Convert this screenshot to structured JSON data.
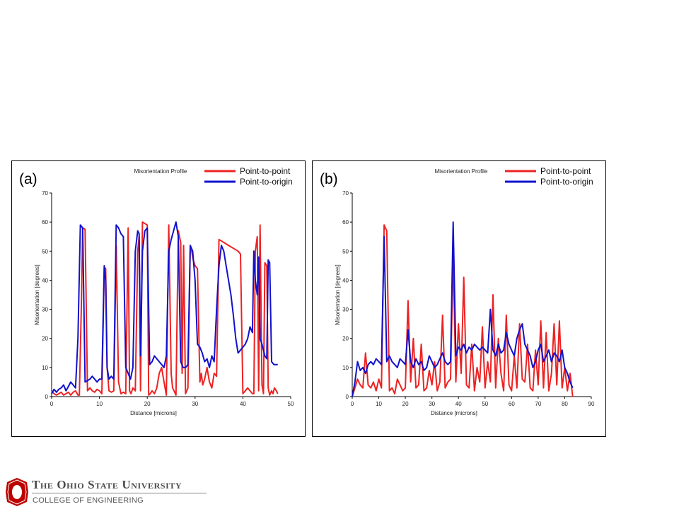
{
  "colors": {
    "point_to_point": "#ee2222",
    "point_to_origin": "#1111cc",
    "osu_scarlet": "#bb0000"
  },
  "footer": {
    "university": "The Ohio State University",
    "college": "COLLEGE OF ENGINEERING"
  },
  "chart_data": [
    {
      "id": "a",
      "panel_label": "(a)",
      "type": "line",
      "title": "Misorientation Profile",
      "xlabel": "Distance [microns]",
      "ylabel": "Misorientation [degrees]",
      "xlim": [
        0,
        50
      ],
      "ylim": [
        0,
        70
      ],
      "xticks": [
        0,
        10,
        20,
        30,
        40,
        50
      ],
      "yticks": [
        0,
        10,
        20,
        30,
        40,
        50,
        60,
        70
      ],
      "legend": [
        "Point-to-point",
        "Point-to-origin"
      ],
      "series": [
        {
          "name": "Point-to-point",
          "color": "#ee2222",
          "x": [
            0,
            0.5,
            1,
            1.5,
            2,
            2.5,
            3,
            3.5,
            4,
            4.5,
            5,
            5.5,
            5.8,
            6.2,
            6.5,
            7,
            7.5,
            8,
            8.5,
            9,
            9.5,
            10,
            10.5,
            11,
            11.3,
            11.6,
            12,
            12.5,
            13,
            13.5,
            14,
            14.5,
            15,
            15.5,
            16,
            16.3,
            16.6,
            17,
            17.5,
            18,
            18.3,
            18.6,
            19,
            19.5,
            20,
            20.3,
            20.6,
            21,
            21.5,
            22,
            22.5,
            23,
            23.5,
            24,
            24.5,
            25,
            25.3,
            25.6,
            26,
            26.5,
            27,
            27.3,
            27.6,
            28,
            28.5,
            29,
            29.3,
            29.6,
            30,
            30.5,
            31,
            31.3,
            31.6,
            32,
            32.5,
            33,
            33.5,
            34,
            34.5,
            35,
            36,
            37,
            38,
            39,
            39.5,
            40,
            40.5,
            41,
            41.5,
            42,
            42.3,
            42.6,
            43,
            43.3,
            43.6,
            44,
            44.3,
            44.6,
            45,
            45.3,
            45.6,
            46,
            46.3,
            46.6,
            47,
            47.3
          ],
          "values": [
            2,
            1,
            0.5,
            1,
            1.5,
            0.5,
            1,
            1.5,
            0.5,
            1.5,
            2,
            0.5,
            0.5,
            30,
            58,
            57.5,
            2,
            3,
            2,
            1.5,
            2.5,
            2,
            1,
            44.5,
            44,
            10,
            2,
            1.5,
            2,
            52,
            5,
            1,
            1.5,
            1,
            58,
            2,
            1,
            3,
            2,
            50,
            55,
            2,
            60,
            59.5,
            59,
            0.5,
            1,
            2,
            1,
            3,
            8,
            10,
            5,
            0.5,
            59,
            8,
            3,
            2,
            0.5,
            57,
            53,
            8,
            52,
            1,
            3,
            52,
            50,
            47,
            45,
            44,
            5,
            8,
            4,
            6,
            10,
            5,
            3,
            8,
            7,
            54,
            53,
            52,
            51,
            50,
            49,
            1,
            2,
            3,
            2,
            1,
            1,
            50,
            55,
            2,
            59,
            4,
            1,
            46,
            45,
            3,
            0.5,
            2,
            1,
            3,
            2,
            1
          ]
        },
        {
          "name": "Point-to-origin",
          "color": "#1111cc",
          "x": [
            0,
            0.5,
            1,
            1.5,
            2,
            2.5,
            3,
            3.5,
            4,
            4.5,
            5,
            5.5,
            6,
            6.5,
            7,
            7.5,
            8,
            8.5,
            9,
            9.5,
            10,
            10.5,
            11,
            11.3,
            11.6,
            12,
            12.5,
            13,
            13.5,
            14,
            14.5,
            15,
            15.5,
            16,
            16.5,
            17,
            17.5,
            18,
            18.3,
            18.6,
            19,
            19.5,
            20,
            20.5,
            21,
            21.5,
            22,
            22.5,
            23,
            23.5,
            24,
            24.5,
            25,
            25.5,
            26,
            26.5,
            27,
            27.5,
            28,
            28.5,
            29,
            29.5,
            30,
            30.5,
            31,
            31.5,
            32,
            32.5,
            33,
            33.5,
            34,
            34.5,
            35,
            35.5,
            36,
            36.5,
            37,
            37.5,
            38,
            38.5,
            39,
            39.5,
            40,
            40.5,
            41,
            41.5,
            42,
            42.3,
            42.6,
            43,
            43.3,
            43.6,
            44,
            44.3,
            44.6,
            45,
            45.3,
            45.6,
            46,
            46.5,
            47,
            47.3
          ],
          "values": [
            1,
            2.5,
            1.5,
            2.5,
            3,
            4,
            2,
            3.5,
            5,
            4,
            3,
            20,
            59,
            58,
            5,
            5.5,
            6,
            7,
            6,
            5,
            6,
            6,
            45,
            40,
            10,
            6,
            7,
            6,
            59,
            58,
            56,
            55,
            10,
            8,
            6,
            10,
            50,
            57,
            56,
            14,
            50,
            57,
            58,
            11,
            12,
            14,
            13,
            12,
            11,
            10,
            14,
            50,
            54,
            57,
            60,
            55,
            12,
            10,
            10,
            11,
            52,
            50,
            40,
            18,
            17,
            15,
            12,
            13,
            10,
            14,
            12,
            30,
            45,
            52,
            50,
            45,
            40,
            35,
            28,
            20,
            15,
            16,
            17,
            18,
            20,
            24,
            22,
            50,
            40,
            35,
            48,
            20,
            18,
            16,
            14,
            13,
            47,
            46,
            12,
            11,
            11,
            11
          ]
        }
      ]
    },
    {
      "id": "b",
      "panel_label": "(b)",
      "type": "line",
      "title": "Misorientation Profile",
      "xlabel": "Distance [microns]",
      "ylabel": "Misorientation [degrees]",
      "xlim": [
        0,
        90
      ],
      "ylim": [
        0,
        70
      ],
      "xticks": [
        0,
        10,
        20,
        30,
        40,
        50,
        60,
        70,
        80,
        90
      ],
      "yticks": [
        0,
        10,
        20,
        30,
        40,
        50,
        60,
        70
      ],
      "legend": [
        "Point-to-point",
        "Point-to-origin"
      ],
      "series": [
        {
          "name": "Point-to-point",
          "color": "#ee2222",
          "x": [
            0,
            1,
            2,
            3,
            4,
            5,
            6,
            7,
            8,
            9,
            10,
            11,
            12,
            13,
            14,
            15,
            16,
            17,
            18,
            19,
            20,
            21,
            22,
            23,
            24,
            25,
            26,
            27,
            28,
            29,
            30,
            31,
            32,
            33,
            34,
            35,
            36,
            37,
            38,
            39,
            40,
            41,
            42,
            43,
            44,
            45,
            46,
            47,
            48,
            49,
            50,
            51,
            52,
            53,
            54,
            55,
            56,
            57,
            58,
            59,
            60,
            61,
            62,
            63,
            64,
            65,
            66,
            67,
            68,
            69,
            70,
            71,
            72,
            73,
            74,
            75,
            76,
            77,
            78,
            79,
            80,
            81,
            82,
            83
          ],
          "values": [
            0,
            3,
            6,
            4,
            3,
            15,
            4,
            3,
            5,
            2,
            6,
            3,
            59,
            57,
            2,
            3,
            1,
            6,
            4,
            2,
            3,
            33,
            5,
            20,
            3,
            4,
            18,
            2,
            3,
            9,
            4,
            12,
            2,
            5,
            28,
            3,
            5,
            6,
            49,
            5,
            25,
            8,
            41,
            4,
            3,
            18,
            2,
            10,
            5,
            24,
            3,
            12,
            5,
            35,
            3,
            20,
            8,
            2,
            28,
            4,
            2,
            14,
            3,
            25,
            6,
            5,
            18,
            3,
            2,
            16,
            4,
            26,
            3,
            22,
            2,
            8,
            25,
            4,
            26,
            3,
            10,
            2,
            8,
            0
          ]
        },
        {
          "name": "Point-to-origin",
          "color": "#1111cc",
          "x": [
            0,
            1,
            2,
            3,
            4,
            5,
            6,
            7,
            8,
            9,
            10,
            11,
            12,
            13,
            14,
            15,
            16,
            17,
            18,
            19,
            20,
            21,
            22,
            23,
            24,
            25,
            26,
            27,
            28,
            29,
            30,
            31,
            32,
            33,
            34,
            35,
            36,
            37,
            38,
            39,
            40,
            41,
            42,
            43,
            44,
            45,
            46,
            47,
            48,
            49,
            50,
            51,
            52,
            53,
            54,
            55,
            56,
            57,
            58,
            59,
            60,
            61,
            62,
            63,
            64,
            65,
            66,
            67,
            68,
            69,
            70,
            71,
            72,
            73,
            74,
            75,
            76,
            77,
            78,
            79,
            80,
            81,
            82,
            83
          ],
          "values": [
            0,
            5,
            12,
            9,
            10,
            8,
            11,
            12,
            11,
            13,
            12,
            11,
            55,
            12,
            14,
            12,
            11,
            10,
            13,
            12,
            11,
            23,
            12,
            10,
            13,
            11,
            12,
            9,
            10,
            14,
            12,
            10,
            11,
            13,
            15,
            12,
            11,
            12,
            60,
            14,
            17,
            16,
            18,
            15,
            17,
            16,
            18,
            17,
            16,
            17,
            16,
            15,
            30,
            16,
            14,
            18,
            15,
            16,
            22,
            18,
            16,
            14,
            20,
            23,
            25,
            18,
            16,
            14,
            10,
            12,
            16,
            18,
            12,
            14,
            16,
            12,
            15,
            14,
            12,
            16,
            10,
            8,
            5,
            3
          ]
        }
      ]
    }
  ]
}
